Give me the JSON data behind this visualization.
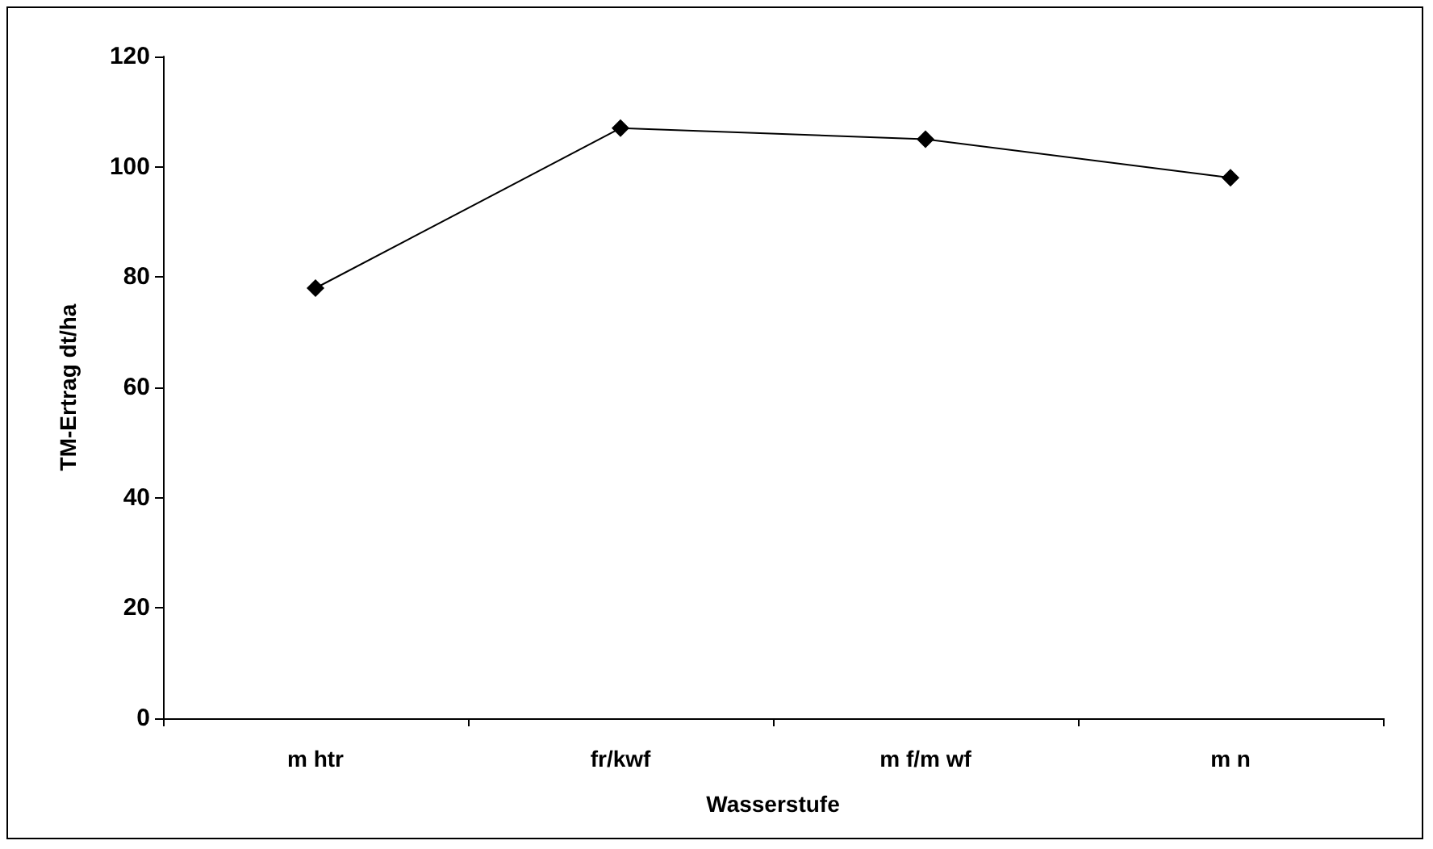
{
  "chart_data": {
    "type": "line",
    "xlabel": "Wasserstufe",
    "ylabel": "TM-Ertrag dt/ha",
    "categories": [
      "m htr",
      "fr/kwf",
      "m f/m wf",
      "m n"
    ],
    "series": [
      {
        "color": "#000000",
        "values": [
          78,
          107,
          105,
          98
        ]
      }
    ],
    "ylim": [
      0,
      120
    ],
    "yticks": [
      0,
      20,
      40,
      60,
      80,
      100,
      120
    ],
    "grid": false,
    "marker": "diamond",
    "line_style": "solid"
  }
}
